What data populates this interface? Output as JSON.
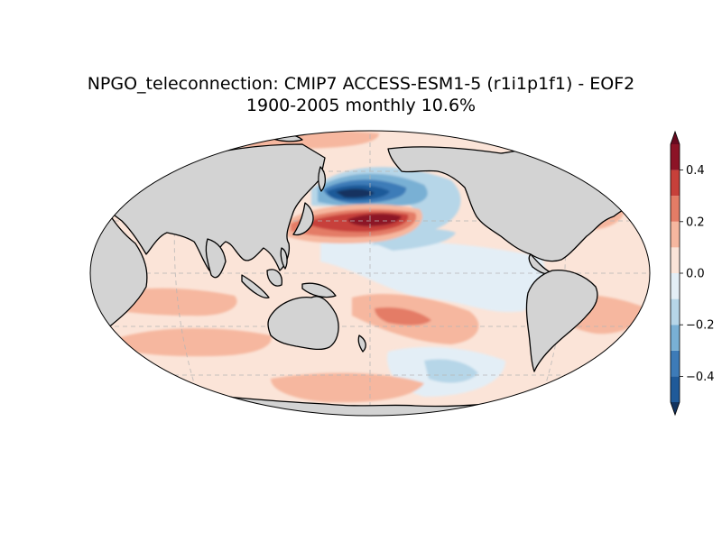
{
  "figure": {
    "title_line1": "NPGO_teleconnection: CMIP7 ACCESS-ESM1-5 (r1i1p1f1) - EOF2",
    "title_line2": "1900-2005 monthly 10.6%"
  },
  "colorbar": {
    "levels": [
      -0.5,
      -0.4,
      -0.3,
      -0.2,
      -0.1,
      0.0,
      0.1,
      0.2,
      0.3,
      0.4,
      0.5
    ],
    "colors": [
      "#1f5a99",
      "#3d7bb8",
      "#79b0d4",
      "#b6d6e8",
      "#e3eef6",
      "#fbe4d8",
      "#f6b79f",
      "#e47c66",
      "#c7403a",
      "#8c1326"
    ],
    "extend_colors": {
      "under": "#12335e",
      "over": "#670a1f"
    },
    "ticks": [
      -0.4,
      -0.2,
      0.0,
      0.2,
      0.4
    ],
    "tick_labels": [
      "−0.4",
      "−0.2",
      "0.0",
      "0.2",
      "0.4"
    ]
  },
  "map": {
    "projection": "Robinson",
    "central_longitude": 180,
    "land_color": "#d3d3d3",
    "coastline_color": "#000000",
    "gridlines": true
  }
}
